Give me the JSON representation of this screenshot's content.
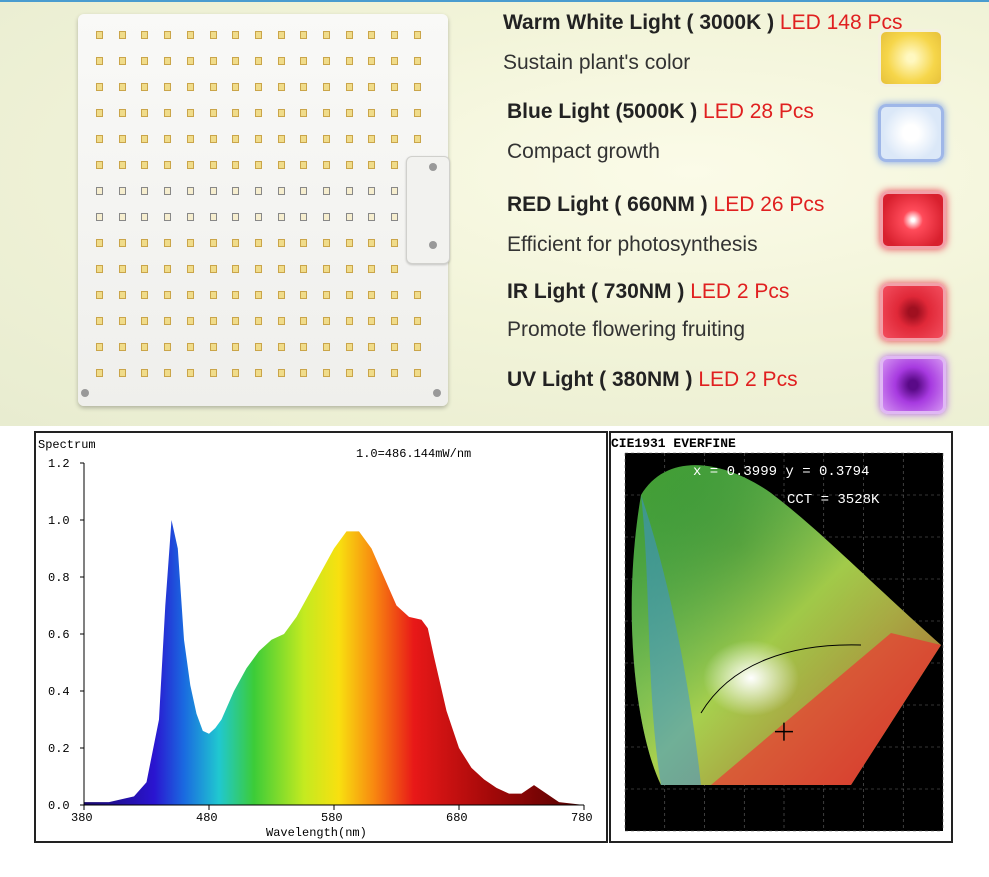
{
  "specs": [
    {
      "name": "Warm White Light ( 3000K )",
      "count": "LED 148 Pcs",
      "desc": "Sustain plant's color",
      "swatch": "#f6d64a"
    },
    {
      "name": "Blue Light (5000K )",
      "count": "LED 28 Pcs",
      "desc": "Compact growth",
      "swatch": "#cfe0f5"
    },
    {
      "name": "RED Light ( 660NM )",
      "count": "LED 26 Pcs",
      "desc": "Efficient for photosynthesis",
      "swatch": "#e8283c"
    },
    {
      "name": "IR Light ( 730NM )",
      "count": "LED 2 Pcs",
      "desc": "Promote flowering fruiting",
      "swatch": "#d8202e"
    },
    {
      "name": "UV Light ( 380NM )",
      "count": "LED 2 Pcs",
      "desc": "",
      "swatch": "#9a2fd0"
    }
  ],
  "colors": {
    "accent_red": "#e02020",
    "top_rule": "#4a9ccf"
  },
  "chart_data": [
    {
      "type": "area",
      "title": "Spectrum",
      "annotation": "1.0=486.144mW/nm",
      "xlabel": "Wavelength(nm)",
      "ylabel": "",
      "xlim": [
        380,
        780
      ],
      "ylim": [
        0,
        1.2
      ],
      "x_ticks": [
        "380",
        "480",
        "580",
        "680",
        "780"
      ],
      "y_ticks": [
        "0.0",
        "0.2",
        "0.4",
        "0.6",
        "0.8",
        "1.0",
        "1.2"
      ],
      "grid": false,
      "x": [
        380,
        400,
        420,
        430,
        440,
        445,
        450,
        455,
        460,
        465,
        470,
        475,
        480,
        485,
        490,
        500,
        510,
        520,
        530,
        540,
        550,
        560,
        570,
        580,
        590,
        600,
        610,
        620,
        630,
        640,
        650,
        655,
        660,
        670,
        680,
        690,
        700,
        710,
        720,
        730,
        740,
        750,
        760,
        780
      ],
      "y": [
        0.01,
        0.01,
        0.03,
        0.08,
        0.3,
        0.7,
        1.0,
        0.9,
        0.58,
        0.42,
        0.32,
        0.26,
        0.25,
        0.27,
        0.3,
        0.4,
        0.48,
        0.54,
        0.58,
        0.6,
        0.66,
        0.74,
        0.82,
        0.9,
        0.96,
        0.96,
        0.9,
        0.8,
        0.7,
        0.66,
        0.65,
        0.62,
        0.52,
        0.33,
        0.2,
        0.13,
        0.09,
        0.06,
        0.04,
        0.04,
        0.07,
        0.04,
        0.01,
        0.0
      ]
    },
    {
      "type": "scatter",
      "title": "CIE1931 EVERFINE",
      "readout_xy": "x = 0.3999 y = 0.3794",
      "readout_cct": "CCT = 3528K",
      "x": [
        0.3999
      ],
      "y": [
        0.3794
      ],
      "cct": 3528
    }
  ]
}
